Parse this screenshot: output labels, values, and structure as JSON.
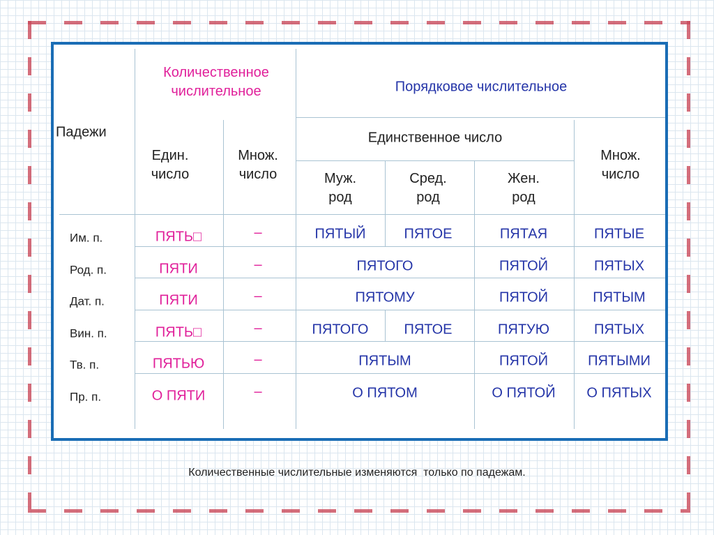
{
  "header": {
    "case_label": "Падежи",
    "cardinal": "Количественное числительное",
    "ordinal": "Порядковое числительное",
    "cardinal_sing": "Един. число",
    "cardinal_plur": "Множ. число",
    "ordinal_sing": "Единственное число",
    "masc": "Муж. род",
    "neut": "Сред. род",
    "fem": "Жен. род",
    "ordinal_plur": "Множ. число"
  },
  "rows": [
    {
      "case": "Им. п.",
      "cardinal": [
        "ПЯТЬ□",
        "–"
      ],
      "ordinal": [
        "ПЯТЫЙ",
        "ПЯТОЕ",
        "ПЯТАЯ",
        "ПЯТЫЕ"
      ]
    },
    {
      "case": "Род. п.",
      "cardinal": [
        "ПЯТИ",
        "–"
      ],
      "ordinal": [
        "ПЯТОГО",
        "ПЯТОЙ",
        "ПЯТЫХ"
      ]
    },
    {
      "case": "Дат. п.",
      "cardinal": [
        "ПЯТИ",
        "–"
      ],
      "ordinal": [
        "ПЯТОМУ",
        "ПЯТОЙ",
        "ПЯТЫМ"
      ]
    },
    {
      "case": "Вин. п.",
      "cardinal": [
        "ПЯТЬ□",
        "–"
      ],
      "ordinal": [
        "ПЯТОГО",
        "ПЯТОЕ",
        "ПЯТУЮ",
        "ПЯТЫХ"
      ]
    },
    {
      "case": "Тв. п.",
      "cardinal": [
        "ПЯТЬЮ",
        "–"
      ],
      "ordinal": [
        "ПЯТЫМ",
        "ПЯТОЙ",
        "ПЯТЫМИ"
      ]
    },
    {
      "case": "Пр. п.",
      "cardinal": [
        "О ПЯТИ",
        "–"
      ],
      "ordinal": [
        "О ПЯТОМ",
        "О ПЯТОЙ",
        "О ПЯТЫХ"
      ]
    }
  ],
  "caption": "Количественные числительные изменяются  только по падежам."
}
